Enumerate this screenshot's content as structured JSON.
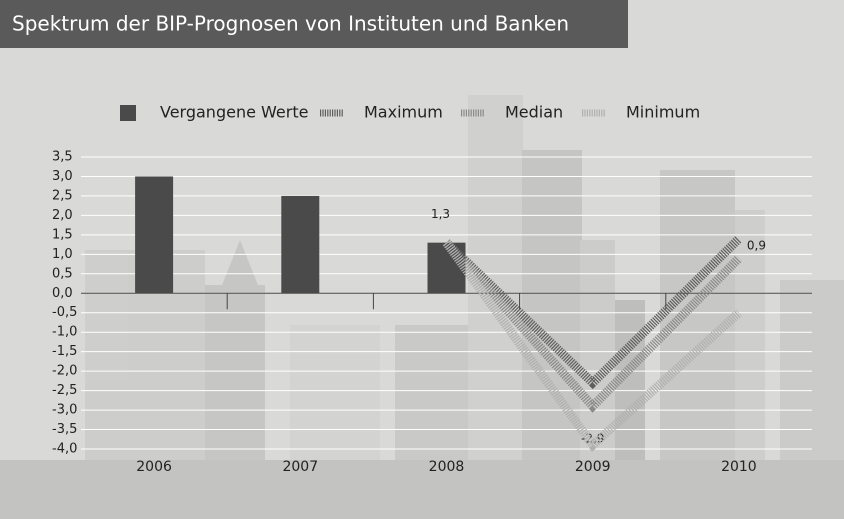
{
  "chart_data": {
    "type": "bar",
    "title": "Spektrum der BIP-Prognosen von Instituten und Banken",
    "categories": [
      "2006",
      "2007",
      "2008",
      "2009",
      "2010"
    ],
    "series": [
      {
        "name": "Vergangene Werte",
        "type": "bar",
        "color": "#4a4a4a",
        "values": [
          3.0,
          2.5,
          1.3,
          null,
          null
        ]
      },
      {
        "name": "Maximum",
        "type": "line",
        "color": "#5e5e5e",
        "values": [
          null,
          null,
          1.3,
          -2.3,
          1.4
        ]
      },
      {
        "name": "Median",
        "type": "line",
        "color": "#8a8a8a",
        "values": [
          null,
          null,
          1.3,
          -2.9,
          0.9
        ],
        "value_labels": [
          null,
          null,
          "1,3",
          "-2,9",
          "0,9"
        ]
      },
      {
        "name": "Minimum",
        "type": "line",
        "color": "#b0b0b0",
        "values": [
          null,
          null,
          1.3,
          -3.9,
          -0.5
        ]
      }
    ],
    "ylim": [
      -4.0,
      3.5
    ],
    "yticks": [
      {
        "value": 3.5,
        "label": "3,5"
      },
      {
        "value": 3.0,
        "label": "3,0"
      },
      {
        "value": 2.5,
        "label": "2,5"
      },
      {
        "value": 2.0,
        "label": "2,0"
      },
      {
        "value": 1.5,
        "label": "1,5"
      },
      {
        "value": 1.0,
        "label": "1,0"
      },
      {
        "value": 0.5,
        "label": "0,5"
      },
      {
        "value": 0.0,
        "label": "0,0"
      },
      {
        "value": -0.5,
        "label": "-0,5"
      },
      {
        "value": -1.0,
        "label": "-1,0"
      },
      {
        "value": -1.5,
        "label": "-1,5"
      },
      {
        "value": -2.0,
        "label": "-2,0"
      },
      {
        "value": -2.5,
        "label": "-2,5"
      },
      {
        "value": -3.0,
        "label": "-3,0"
      },
      {
        "value": -3.5,
        "label": "-3,5"
      },
      {
        "value": -4.0,
        "label": "-4,0"
      }
    ],
    "grid": true
  }
}
